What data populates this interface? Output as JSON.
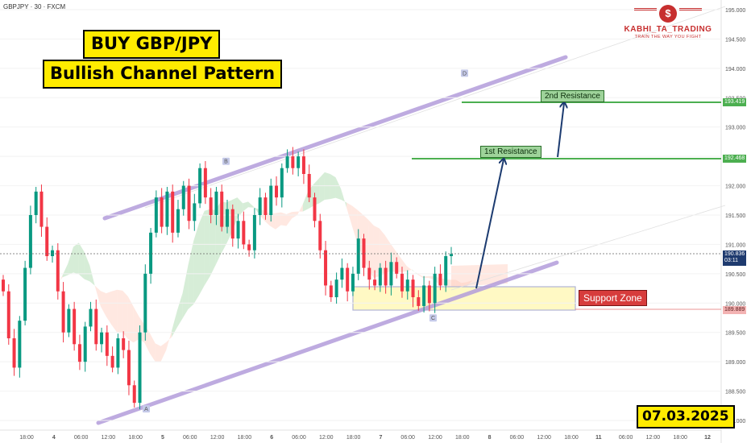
{
  "symbol_label": "GBPJPY · 30 · FXCM",
  "titles": {
    "line1": "BUY GBP/JPY",
    "line2": "Bullish Channel Pattern"
  },
  "date_label": "07.03.2025",
  "logo": {
    "name": "KABHI_TA_TRADING",
    "tagline": "TRAIN THE WAY YOU FIGHT",
    "glyph": "$"
  },
  "tags": {
    "res1": "1st Resistance",
    "res2": "2nd Resistance",
    "support": "Support Zone",
    "current_price": "190.836",
    "countdown": "03:11",
    "res1_price": "192.468",
    "res2_price": "193.419",
    "support_price": "189.889"
  },
  "colors": {
    "up_candle": "#089981",
    "down_candle": "#f23645",
    "channel": "#b39ddb",
    "resistance": "#4caf50",
    "arrow": "#1c3b70",
    "support_fill": "#fff9c4",
    "cloud_bull": "#a5d6a7",
    "cloud_bear": "#ffccbc"
  },
  "chart_data": {
    "type": "candlestick",
    "y_axis": {
      "ticks": [
        "195.000",
        "194.500",
        "194.000",
        "193.500",
        "193.000",
        "192.500",
        "192.000",
        "191.500",
        "191.000",
        "190.500",
        "190.000",
        "189.500",
        "189.000",
        "188.500",
        "188.000"
      ],
      "range": [
        187.95,
        195.15
      ]
    },
    "x_axis": {
      "ticks": [
        "18:00",
        "4",
        "06:00",
        "12:00",
        "18:00",
        "5",
        "06:00",
        "12:00",
        "18:00",
        "6",
        "06:00",
        "12:00",
        "18:00",
        "7",
        "06:00",
        "12:00",
        "18:00",
        "8",
        "06:00",
        "12:00",
        "18:00",
        "11",
        "06:00",
        "12:00",
        "18:00",
        "12"
      ]
    },
    "levels": [
      {
        "name": "2nd Resistance",
        "price": 193.419
      },
      {
        "name": "1st Resistance",
        "price": 192.468
      },
      {
        "name": "Support Zone",
        "price_range": [
          189.889,
          190.25
        ]
      }
    ],
    "pivots": [
      {
        "label": "A",
        "price": 188.3
      },
      {
        "label": "B",
        "price": 192.3
      },
      {
        "label": "C",
        "price": 189.85
      },
      {
        "label": "D",
        "price": 193.8
      }
    ],
    "last_price": 190.836,
    "candle_closes": [
      190.2,
      189.4,
      188.9,
      189.7,
      190.6,
      191.5,
      191.9,
      191.3,
      190.8,
      190.9,
      190.2,
      189.5,
      189.9,
      189.3,
      189.0,
      189.6,
      189.9,
      189.3,
      189.5,
      189.1,
      188.9,
      189.4,
      189.2,
      188.6,
      188.3,
      189.5,
      190.5,
      191.2,
      191.8,
      191.3,
      191.9,
      191.2,
      191.6,
      192.0,
      191.4,
      191.7,
      192.3,
      191.8,
      191.5,
      191.9,
      191.3,
      191.6,
      191.1,
      191.4,
      191.0,
      190.9,
      191.5,
      191.8,
      191.5,
      192.0,
      191.8,
      192.3,
      192.5,
      192.3,
      192.5,
      192.2,
      191.8,
      191.4,
      190.9,
      190.3,
      190.1,
      190.4,
      190.6,
      190.2,
      190.5,
      191.1,
      190.6,
      190.4,
      190.3,
      190.6,
      190.3,
      190.7,
      190.5,
      190.2,
      190.4,
      190.1,
      189.95,
      190.3,
      190.0,
      190.5,
      190.3,
      190.8,
      190.836
    ]
  }
}
